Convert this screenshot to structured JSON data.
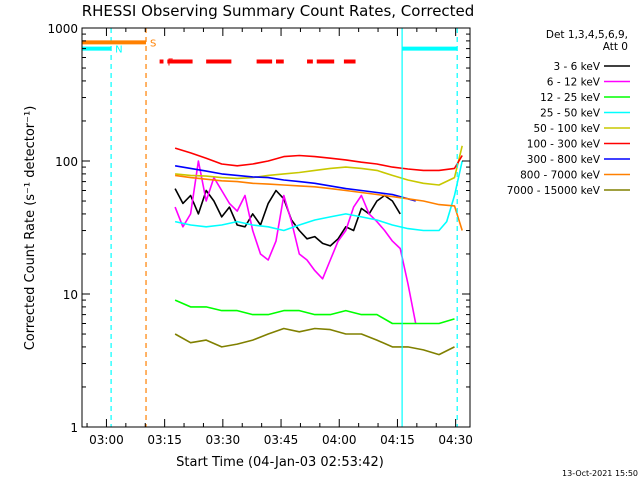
{
  "chart_data": {
    "type": "line",
    "title": "RHESSI Observing Summary Count Rates, Corrected",
    "xlabel": "Start Time (04-Jan-03 02:53:42)",
    "ylabel": "Corrected Count Rate (s⁻¹ detector⁻¹)",
    "timestamp": "13-Oct-2021 15:50",
    "x_unit": "minutes",
    "xlim": [
      0,
      100
    ],
    "ylim": [
      1,
      1000
    ],
    "yscale": "log",
    "x_ticks": [
      {
        "value": 6.3,
        "label": "03:00"
      },
      {
        "value": 21.3,
        "label": "03:15"
      },
      {
        "value": 36.3,
        "label": "03:30"
      },
      {
        "value": 51.3,
        "label": "03:45"
      },
      {
        "value": 66.3,
        "label": "04:00"
      },
      {
        "value": 81.3,
        "label": "04:15"
      },
      {
        "value": 96.3,
        "label": "04:30"
      }
    ],
    "y_ticks": [
      {
        "value": 1,
        "label": "1"
      },
      {
        "value": 10,
        "label": "10"
      },
      {
        "value": 100,
        "label": "100"
      },
      {
        "value": 1000,
        "label": "1000"
      }
    ],
    "legend": {
      "placement": "right",
      "header": [
        "Det 1,3,4,5,6,9,",
        "Att 0"
      ]
    },
    "series": [
      {
        "name": "3 - 6 keV",
        "color": "#000000",
        "x": [
          24,
          26,
          28,
          30,
          32,
          34,
          36,
          38,
          40,
          42,
          44,
          46,
          48,
          50,
          52,
          54,
          56,
          58,
          60,
          62,
          64,
          66,
          68,
          70,
          72,
          74,
          76,
          78,
          80,
          82
        ],
        "y": [
          62,
          48,
          55,
          40,
          60,
          50,
          38,
          45,
          33,
          32,
          40,
          33,
          48,
          60,
          52,
          36,
          30,
          26,
          27,
          24,
          23,
          26,
          32,
          30,
          44,
          40,
          50,
          55,
          50,
          40
        ]
      },
      {
        "name": "6 - 12 keV",
        "color": "#ff00ff",
        "x": [
          24,
          26,
          28,
          30,
          32,
          34,
          36,
          38,
          40,
          42,
          44,
          46,
          48,
          50,
          52,
          54,
          56,
          58,
          60,
          62,
          64,
          66,
          68,
          70,
          72,
          74,
          76,
          78,
          80,
          82,
          84,
          86
        ],
        "y": [
          45,
          32,
          40,
          100,
          50,
          75,
          60,
          48,
          42,
          55,
          30,
          20,
          18,
          25,
          55,
          35,
          20,
          18,
          15,
          13,
          18,
          25,
          30,
          45,
          55,
          40,
          35,
          30,
          25,
          22,
          12,
          6
        ]
      },
      {
        "name": "12 - 25 keV",
        "color": "#00ff00",
        "x": [
          24,
          28,
          32,
          36,
          40,
          44,
          48,
          52,
          56,
          60,
          64,
          68,
          72,
          76,
          80,
          84,
          88,
          92,
          96
        ],
        "y": [
          9,
          8,
          8,
          7.5,
          7.5,
          7,
          7,
          7.5,
          7.5,
          7,
          7,
          7.5,
          7,
          7,
          6,
          6,
          6,
          6,
          6.5
        ]
      },
      {
        "name": "25 - 50 keV",
        "color": "#00ffff",
        "x": [
          24,
          28,
          32,
          36,
          40,
          44,
          48,
          52,
          56,
          60,
          64,
          68,
          72,
          76,
          80,
          84,
          88,
          92,
          94,
          96,
          98
        ],
        "y": [
          35,
          33,
          32,
          33,
          35,
          33,
          32,
          30,
          33,
          36,
          38,
          40,
          38,
          36,
          33,
          31,
          30,
          30,
          35,
          55,
          100
        ]
      },
      {
        "name": "50 - 100 keV",
        "color": "#c8c800",
        "x": [
          24,
          28,
          32,
          36,
          40,
          44,
          48,
          52,
          56,
          60,
          64,
          68,
          72,
          76,
          80,
          84,
          88,
          92,
          96,
          98
        ],
        "y": [
          80,
          78,
          77,
          75,
          74,
          75,
          78,
          80,
          82,
          85,
          88,
          90,
          88,
          85,
          78,
          72,
          68,
          66,
          75,
          130
        ]
      },
      {
        "name": "100 - 300 keV",
        "color": "#ff0000",
        "x": [
          24,
          28,
          32,
          36,
          40,
          44,
          48,
          52,
          56,
          60,
          64,
          68,
          72,
          76,
          80,
          84,
          88,
          92,
          96,
          98
        ],
        "y": [
          125,
          115,
          105,
          95,
          92,
          95,
          100,
          108,
          110,
          108,
          105,
          102,
          98,
          95,
          90,
          87,
          85,
          85,
          88,
          110
        ]
      },
      {
        "name": "300 - 800 keV",
        "color": "#0000ff",
        "x": [
          24,
          28,
          32,
          36,
          40,
          44,
          48,
          52,
          56,
          60,
          64,
          68,
          72,
          76,
          80,
          84,
          86
        ],
        "y": [
          92,
          88,
          84,
          80,
          78,
          76,
          75,
          72,
          70,
          68,
          65,
          62,
          60,
          58,
          56,
          52,
          50
        ]
      },
      {
        "name": "800 - 7000 keV",
        "color": "#ff8000",
        "x": [
          24,
          28,
          32,
          36,
          40,
          44,
          48,
          52,
          56,
          60,
          64,
          68,
          72,
          76,
          80,
          84,
          88,
          92,
          96,
          98
        ],
        "y": [
          78,
          75,
          73,
          71,
          70,
          68,
          67,
          66,
          65,
          64,
          62,
          60,
          58,
          56,
          54,
          52,
          50,
          47,
          46,
          30
        ]
      },
      {
        "name": "7000 - 15000 keV",
        "color": "#808000",
        "x": [
          24,
          28,
          32,
          36,
          40,
          44,
          48,
          52,
          56,
          60,
          64,
          68,
          72,
          76,
          80,
          84,
          88,
          92,
          96
        ],
        "y": [
          5,
          4.3,
          4.5,
          4,
          4.2,
          4.5,
          5,
          5.5,
          5.2,
          5.5,
          5.4,
          5,
          5,
          4.5,
          4,
          4,
          3.8,
          3.5,
          4
        ]
      }
    ],
    "vertical_lines": [
      {
        "x": 7.5,
        "color": "#00ffff",
        "style": "dashed"
      },
      {
        "x": 16.5,
        "color": "#ff8000",
        "style": "dashed"
      },
      {
        "x": 82.5,
        "color": "#00ffff",
        "style": "solid"
      },
      {
        "x": 96.7,
        "color": "#00ffff",
        "style": "dashed"
      }
    ],
    "flag_bars": [
      {
        "label": "N",
        "color": "#00ffff",
        "y": 700,
        "segments": [
          [
            0,
            7.5
          ],
          [
            82.5,
            96.7
          ]
        ]
      },
      {
        "label": "S",
        "color": "#ff8000",
        "y": 780,
        "segments": [
          [
            0,
            16.5
          ]
        ]
      },
      {
        "label": "F",
        "color": "#ff0000",
        "y": 560,
        "segments": [
          [
            20,
            21
          ],
          [
            22,
            28.5
          ],
          [
            32,
            38.5
          ],
          [
            45,
            49
          ],
          [
            50,
            52
          ],
          [
            58,
            59.5
          ],
          [
            60.5,
            65
          ],
          [
            67.5,
            70.5
          ]
        ]
      }
    ]
  }
}
